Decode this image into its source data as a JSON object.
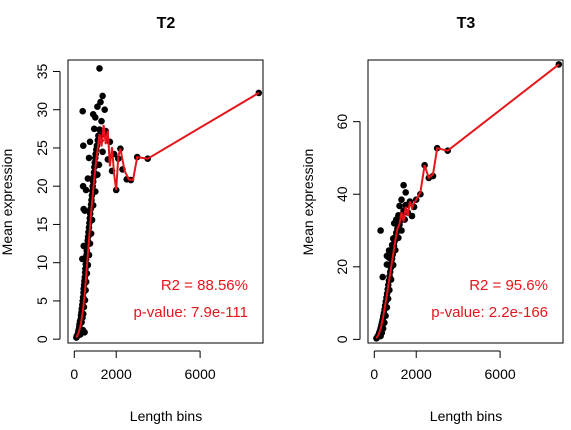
{
  "chart_data": [
    {
      "type": "scatter",
      "title": "T2",
      "xlabel": "Length bins",
      "ylabel": "Mean expression",
      "xlim": [
        -300,
        9000
      ],
      "ylim": [
        -0.5,
        36.5
      ],
      "xticks": [
        0,
        2000,
        6000
      ],
      "xtick_labels": [
        "0",
        "2000",
        "6000"
      ],
      "yticks": [
        0,
        5,
        10,
        15,
        20,
        25,
        30,
        35
      ],
      "ytick_labels": [
        "0",
        "5",
        "10",
        "15",
        "20",
        "25",
        "30",
        "35"
      ],
      "point_color": "#000000",
      "line_color": "#e4161b",
      "annotations": [
        "R2 = 88.56%",
        "p-value: 7.9e-111"
      ],
      "points": [
        [
          100,
          0.2
        ],
        [
          120,
          0.4
        ],
        [
          150,
          0.5
        ],
        [
          170,
          0.7
        ],
        [
          190,
          0.9
        ],
        [
          200,
          1.1
        ],
        [
          220,
          1.3
        ],
        [
          240,
          1.6
        ],
        [
          250,
          1.9
        ],
        [
          270,
          2.3
        ],
        [
          280,
          0.6
        ],
        [
          300,
          1.0
        ],
        [
          300,
          2.6
        ],
        [
          320,
          3.1
        ],
        [
          340,
          3.5
        ],
        [
          350,
          2.2
        ],
        [
          360,
          4.0
        ],
        [
          380,
          4.5
        ],
        [
          390,
          2.8
        ],
        [
          400,
          5.0
        ],
        [
          410,
          1.2
        ],
        [
          420,
          5.5
        ],
        [
          430,
          3.3
        ],
        [
          440,
          6.1
        ],
        [
          450,
          6.6
        ],
        [
          460,
          4.2
        ],
        [
          470,
          7.1
        ],
        [
          480,
          7.6
        ],
        [
          490,
          0.9
        ],
        [
          500,
          8.1
        ],
        [
          510,
          5.1
        ],
        [
          520,
          8.7
        ],
        [
          530,
          9.2
        ],
        [
          540,
          6.4
        ],
        [
          550,
          9.8
        ],
        [
          560,
          10.4
        ],
        [
          570,
          7.5
        ],
        [
          580,
          11.0
        ],
        [
          590,
          11.6
        ],
        [
          600,
          8.6
        ],
        [
          620,
          12.3
        ],
        [
          640,
          12.9
        ],
        [
          650,
          9.7
        ],
        [
          660,
          13.4
        ],
        [
          680,
          14.0
        ],
        [
          700,
          11.0
        ],
        [
          700,
          14.6
        ],
        [
          720,
          15.2
        ],
        [
          740,
          15.8
        ],
        [
          750,
          12.5
        ],
        [
          760,
          16.4
        ],
        [
          780,
          17.0
        ],
        [
          800,
          17.6
        ],
        [
          800,
          13.8
        ],
        [
          820,
          18.2
        ],
        [
          840,
          18.8
        ],
        [
          850,
          15.6
        ],
        [
          860,
          19.4
        ],
        [
          880,
          20.0
        ],
        [
          900,
          20.6
        ],
        [
          900,
          17.5
        ],
        [
          920,
          21.2
        ],
        [
          940,
          21.8
        ],
        [
          960,
          22.5
        ],
        [
          980,
          23.1
        ],
        [
          1000,
          23.7
        ],
        [
          1000,
          19.3
        ],
        [
          1020,
          24.2
        ],
        [
          1050,
          24.8
        ],
        [
          1080,
          25.3
        ],
        [
          1100,
          21.5
        ],
        [
          1120,
          26.0
        ],
        [
          1150,
          26.6
        ],
        [
          1180,
          22.8
        ],
        [
          1200,
          27.4
        ],
        [
          1250,
          26.0
        ],
        [
          1300,
          28.5
        ],
        [
          1350,
          24.5
        ],
        [
          1400,
          26.8
        ],
        [
          1500,
          27.2
        ],
        [
          1600,
          23.5
        ],
        [
          1700,
          25.8
        ],
        [
          1800,
          22.0
        ],
        [
          1900,
          24.2
        ],
        [
          2000,
          19.5
        ],
        [
          2100,
          23.6
        ],
        [
          2200,
          24.9
        ],
        [
          2300,
          22.2
        ],
        [
          2500,
          20.9
        ],
        [
          2700,
          20.8
        ],
        [
          3000,
          23.8
        ],
        [
          3500,
          23.6
        ],
        [
          8800,
          32.2
        ],
        [
          380,
          10.5
        ],
        [
          450,
          12.2
        ],
        [
          500,
          16.8
        ],
        [
          450,
          17.0
        ],
        [
          420,
          20.0
        ],
        [
          430,
          25.3
        ],
        [
          400,
          29.8
        ],
        [
          560,
          19.5
        ],
        [
          650,
          21.0
        ],
        [
          700,
          23.7
        ],
        [
          750,
          25.8
        ],
        [
          1000,
          29.0
        ],
        [
          1100,
          30.4
        ],
        [
          1250,
          31.0
        ],
        [
          1350,
          31.8
        ],
        [
          1450,
          30.0
        ],
        [
          1200,
          35.4
        ],
        [
          900,
          29.4
        ],
        [
          950,
          27.5
        ]
      ],
      "trend": [
        [
          100,
          0.2
        ],
        [
          200,
          0.8
        ],
        [
          300,
          1.8
        ],
        [
          400,
          3.5
        ],
        [
          500,
          6.0
        ],
        [
          600,
          9.5
        ],
        [
          700,
          13.0
        ],
        [
          800,
          16.5
        ],
        [
          900,
          19.5
        ],
        [
          1000,
          22.3
        ],
        [
          1100,
          24.6
        ],
        [
          1200,
          26.8
        ],
        [
          1300,
          25.2
        ],
        [
          1400,
          28.0
        ],
        [
          1500,
          25.5
        ],
        [
          1600,
          27.3
        ],
        [
          1700,
          22.6
        ],
        [
          1800,
          25.1
        ],
        [
          1900,
          21.6
        ],
        [
          2000,
          19.5
        ],
        [
          2100,
          23.9
        ],
        [
          2200,
          24.9
        ],
        [
          2400,
          22.0
        ],
        [
          2600,
          20.9
        ],
        [
          2800,
          20.8
        ],
        [
          3000,
          23.8
        ],
        [
          3500,
          23.6
        ],
        [
          8800,
          32.2
        ]
      ]
    },
    {
      "type": "scatter",
      "title": "T3",
      "xlabel": "Length bins",
      "ylabel": "Mean expression",
      "xlim": [
        -300,
        9000
      ],
      "ylim": [
        -1,
        77
      ],
      "xticks": [
        0,
        2000,
        6000
      ],
      "xtick_labels": [
        "0",
        "2000",
        "6000"
      ],
      "yticks": [
        0,
        20,
        40,
        60
      ],
      "ytick_labels": [
        "0",
        "20",
        "40",
        "60"
      ],
      "point_color": "#000000",
      "line_color": "#e4161b",
      "annotations": [
        "R2 = 95.6%",
        "p-value: 2.2e-166"
      ],
      "points": [
        [
          100,
          0.3
        ],
        [
          130,
          0.5
        ],
        [
          160,
          0.8
        ],
        [
          190,
          1.1
        ],
        [
          220,
          1.5
        ],
        [
          250,
          2.0
        ],
        [
          280,
          2.6
        ],
        [
          300,
          0.9
        ],
        [
          310,
          3.2
        ],
        [
          340,
          3.9
        ],
        [
          360,
          1.8
        ],
        [
          370,
          4.7
        ],
        [
          400,
          5.5
        ],
        [
          420,
          3.0
        ],
        [
          430,
          6.4
        ],
        [
          460,
          7.3
        ],
        [
          480,
          4.6
        ],
        [
          490,
          8.3
        ],
        [
          520,
          9.3
        ],
        [
          540,
          6.5
        ],
        [
          550,
          10.4
        ],
        [
          580,
          11.5
        ],
        [
          600,
          8.8
        ],
        [
          610,
          12.6
        ],
        [
          640,
          13.8
        ],
        [
          660,
          11.2
        ],
        [
          670,
          15.0
        ],
        [
          700,
          16.2
        ],
        [
          720,
          13.6
        ],
        [
          730,
          17.4
        ],
        [
          760,
          18.6
        ],
        [
          790,
          19.8
        ],
        [
          800,
          16.5
        ],
        [
          820,
          21.0
        ],
        [
          850,
          22.2
        ],
        [
          880,
          23.4
        ],
        [
          900,
          20.5
        ],
        [
          910,
          24.6
        ],
        [
          940,
          25.8
        ],
        [
          970,
          27.0
        ],
        [
          1000,
          24.6
        ],
        [
          1000,
          28.2
        ],
        [
          1050,
          29.4
        ],
        [
          1100,
          30.5
        ],
        [
          1150,
          28.0
        ],
        [
          1200,
          31.6
        ],
        [
          1250,
          32.8
        ],
        [
          1300,
          30.0
        ],
        [
          1350,
          34.5
        ],
        [
          1400,
          35.5
        ],
        [
          1450,
          33.0
        ],
        [
          1500,
          37.0
        ],
        [
          1600,
          35.0
        ],
        [
          1700,
          38.0
        ],
        [
          1800,
          34.0
        ],
        [
          1900,
          36.5
        ],
        [
          2000,
          38.5
        ],
        [
          2200,
          40.0
        ],
        [
          2400,
          48.0
        ],
        [
          2600,
          44.5
        ],
        [
          2800,
          45.0
        ],
        [
          3000,
          52.7
        ],
        [
          3500,
          52.0
        ],
        [
          8800,
          75.8
        ],
        [
          600,
          20.6
        ],
        [
          700,
          22.5
        ],
        [
          850,
          26.0
        ],
        [
          950,
          32.0
        ],
        [
          1050,
          33.0
        ],
        [
          1150,
          34.2
        ],
        [
          1300,
          38.5
        ],
        [
          1400,
          42.5
        ],
        [
          1500,
          40.5
        ],
        [
          1200,
          36.8
        ],
        [
          900,
          27.8
        ],
        [
          700,
          24.5
        ],
        [
          400,
          17.2
        ],
        [
          300,
          30.0
        ],
        [
          600,
          23.0
        ]
      ],
      "trend": [
        [
          100,
          0.3
        ],
        [
          200,
          1.3
        ],
        [
          300,
          2.9
        ],
        [
          400,
          5.5
        ],
        [
          500,
          8.8
        ],
        [
          600,
          12.2
        ],
        [
          700,
          16.0
        ],
        [
          800,
          19.8
        ],
        [
          900,
          23.5
        ],
        [
          1000,
          27.2
        ],
        [
          1100,
          30.5
        ],
        [
          1200,
          31.8
        ],
        [
          1300,
          35.0
        ],
        [
          1400,
          32.5
        ],
        [
          1500,
          36.5
        ],
        [
          1600,
          34.0
        ],
        [
          1700,
          38.0
        ],
        [
          1800,
          36.2
        ],
        [
          1900,
          37.5
        ],
        [
          2000,
          38.5
        ],
        [
          2200,
          40.5
        ],
        [
          2400,
          48.0
        ],
        [
          2600,
          44.5
        ],
        [
          2800,
          45.5
        ],
        [
          3000,
          52.7
        ],
        [
          3500,
          52.0
        ],
        [
          8800,
          75.8
        ]
      ]
    }
  ]
}
